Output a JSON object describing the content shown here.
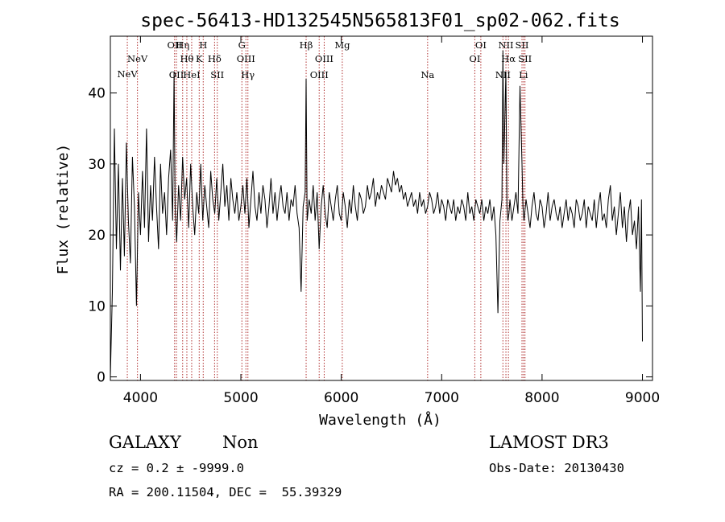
{
  "chart_data": {
    "type": "line",
    "title": "spec-56413-HD132545N565813F01_sp02-062.fits",
    "xlabel": "Wavelength (Å)",
    "ylabel": "Flux (relative)",
    "xlim": [
      3700,
      9100
    ],
    "ylim": [
      -0.5,
      48
    ],
    "xticks": [
      4000,
      5000,
      6000,
      7000,
      8000,
      9000
    ],
    "yticks": [
      0,
      10,
      20,
      30,
      40
    ],
    "line_color": "#000000",
    "marker_color": "#b03030",
    "spectral_lines": [
      {
        "label": "NeV",
        "wavelength": 3869,
        "row": 3
      },
      {
        "label": "NeV",
        "wavelength": 3970,
        "row": 2
      },
      {
        "label": "OII",
        "wavelength": 4340,
        "row": 1
      },
      {
        "label": "OII",
        "wavelength": 4358,
        "row": 4
      },
      {
        "label": "Hη",
        "wavelength": 4420,
        "row": 1
      },
      {
        "label": "Hθ",
        "wavelength": 4462,
        "row": 2
      },
      {
        "label": "HeI",
        "wavelength": 4510,
        "row": 4
      },
      {
        "label": "K",
        "wavelength": 4585,
        "row": 2
      },
      {
        "label": "H",
        "wavelength": 4625,
        "row": 1
      },
      {
        "label": "Hδ",
        "wavelength": 4738,
        "row": 2
      },
      {
        "label": "SII",
        "wavelength": 4765,
        "row": 4
      },
      {
        "label": "G",
        "wavelength": 5010,
        "row": 1
      },
      {
        "label": "OIII",
        "wavelength": 5050,
        "row": 2
      },
      {
        "label": "Hγ",
        "wavelength": 5070,
        "row": 4
      },
      {
        "label": "Hβ",
        "wavelength": 5650,
        "row": 1
      },
      {
        "label": "OIII",
        "wavelength": 5780,
        "row": 4
      },
      {
        "label": "OIII",
        "wavelength": 5830,
        "row": 2
      },
      {
        "label": "Mg",
        "wavelength": 6010,
        "row": 1
      },
      {
        "label": "Na",
        "wavelength": 6860,
        "row": 4
      },
      {
        "label": "OI",
        "wavelength": 7330,
        "row": 2
      },
      {
        "label": "OI",
        "wavelength": 7390,
        "row": 1
      },
      {
        "label": "NII",
        "wavelength": 7610,
        "row": 4
      },
      {
        "label": "NII",
        "wavelength": 7640,
        "row": 1
      },
      {
        "label": "Hα",
        "wavelength": 7665,
        "row": 2
      },
      {
        "label": "SII",
        "wavelength": 7800,
        "row": 1
      },
      {
        "label": "SII",
        "wavelength": 7830,
        "row": 2
      },
      {
        "label": "Li",
        "wavelength": 7815,
        "row": 4
      }
    ],
    "series": [
      {
        "x": [
          3700,
          3720,
          3740,
          3760,
          3780,
          3800,
          3820,
          3840,
          3860,
          3880,
          3900,
          3920,
          3940,
          3960,
          3980,
          4000,
          4020,
          4040,
          4060,
          4080,
          4100,
          4120,
          4140,
          4160,
          4180,
          4200,
          4220,
          4240,
          4260,
          4280,
          4300,
          4320,
          4335,
          4345,
          4360,
          4380,
          4400,
          4420,
          4440,
          4460,
          4480,
          4500,
          4520,
          4540,
          4560,
          4580,
          4600,
          4620,
          4640,
          4660,
          4680,
          4700,
          4720,
          4740,
          4760,
          4780,
          4800,
          4820,
          4840,
          4860,
          4880,
          4900,
          4920,
          4940,
          4960,
          4980,
          5000,
          5020,
          5040,
          5060,
          5080,
          5100,
          5120,
          5140,
          5160,
          5180,
          5200,
          5220,
          5240,
          5260,
          5280,
          5300,
          5320,
          5340,
          5360,
          5380,
          5400,
          5420,
          5440,
          5460,
          5480,
          5500,
          5520,
          5540,
          5560,
          5580,
          5600,
          5620,
          5640,
          5650,
          5660,
          5680,
          5700,
          5720,
          5740,
          5760,
          5780,
          5800,
          5820,
          5840,
          5860,
          5880,
          5900,
          5920,
          5940,
          5960,
          5980,
          6000,
          6020,
          6040,
          6060,
          6080,
          6100,
          6120,
          6140,
          6160,
          6180,
          6200,
          6220,
          6240,
          6260,
          6280,
          6300,
          6320,
          6340,
          6360,
          6380,
          6400,
          6420,
          6440,
          6460,
          6480,
          6500,
          6520,
          6540,
          6560,
          6580,
          6600,
          6620,
          6640,
          6660,
          6680,
          6700,
          6720,
          6740,
          6760,
          6780,
          6800,
          6820,
          6840,
          6860,
          6880,
          6900,
          6920,
          6940,
          6960,
          6980,
          7000,
          7020,
          7040,
          7060,
          7080,
          7100,
          7120,
          7140,
          7160,
          7180,
          7200,
          7220,
          7240,
          7260,
          7280,
          7300,
          7320,
          7340,
          7360,
          7380,
          7400,
          7420,
          7440,
          7460,
          7480,
          7500,
          7520,
          7540,
          7560,
          7580,
          7600,
          7610,
          7620,
          7640,
          7650,
          7660,
          7670,
          7680,
          7700,
          7720,
          7740,
          7760,
          7780,
          7800,
          7810,
          7820,
          7840,
          7860,
          7880,
          7900,
          7920,
          7940,
          7960,
          7980,
          8000,
          8020,
          8040,
          8060,
          8080,
          8100,
          8120,
          8140,
          8160,
          8180,
          8200,
          8220,
          8240,
          8260,
          8280,
          8300,
          8320,
          8340,
          8360,
          8380,
          8400,
          8420,
          8440,
          8460,
          8480,
          8500,
          8520,
          8540,
          8560,
          8580,
          8600,
          8620,
          8640,
          8660,
          8680,
          8700,
          8720,
          8740,
          8760,
          8780,
          8800,
          8820,
          8840,
          8860,
          8880,
          8900,
          8920,
          8940,
          8960,
          8980,
          8990,
          9000
        ],
        "y": [
          0,
          12,
          35,
          18,
          30,
          15,
          28,
          17,
          33,
          22,
          16,
          31,
          24,
          10,
          26,
          20,
          29,
          21,
          35,
          19,
          27,
          22,
          31,
          24,
          18,
          30,
          23,
          26,
          20,
          28,
          32,
          22,
          43,
          24,
          19,
          27,
          22,
          31,
          25,
          28,
          21,
          30,
          24,
          20,
          26,
          23,
          30,
          22,
          27,
          24,
          21,
          29,
          25,
          23,
          28,
          22,
          26,
          30,
          24,
          27,
          22,
          28,
          25,
          23,
          26,
          22,
          24,
          27,
          23,
          28,
          21,
          25,
          29,
          24,
          22,
          26,
          23,
          27,
          25,
          21,
          24,
          28,
          23,
          26,
          22,
          25,
          27,
          24,
          23,
          26,
          22,
          25,
          24,
          27,
          23,
          21,
          12,
          24,
          26,
          42,
          22,
          25,
          23,
          27,
          22,
          26,
          18,
          24,
          27,
          23,
          21,
          26,
          24,
          22,
          25,
          27,
          23,
          22,
          26,
          24,
          21,
          25,
          23,
          27,
          24,
          22,
          26,
          25,
          23,
          24,
          27,
          25,
          26,
          28,
          24,
          26,
          25,
          27,
          26,
          25,
          28,
          27,
          26,
          29,
          27,
          28,
          26,
          27,
          25,
          26,
          24,
          25,
          26,
          24,
          25,
          23,
          26,
          24,
          25,
          23,
          24,
          26,
          25,
          23,
          24,
          26,
          23,
          25,
          24,
          22,
          25,
          24,
          23,
          25,
          22,
          24,
          23,
          25,
          24,
          22,
          26,
          23,
          24,
          22,
          25,
          24,
          23,
          25,
          22,
          24,
          23,
          25,
          22,
          24,
          20,
          9,
          22,
          25,
          46,
          30,
          43,
          24,
          22,
          23,
          25,
          22,
          24,
          26,
          23,
          41,
          30,
          24,
          22,
          25,
          23,
          21,
          24,
          26,
          23,
          22,
          25,
          24,
          21,
          23,
          26,
          22,
          24,
          25,
          23,
          22,
          24,
          21,
          23,
          25,
          22,
          24,
          23,
          21,
          25,
          24,
          22,
          23,
          25,
          21,
          24,
          23,
          22,
          25,
          21,
          24,
          26,
          22,
          23,
          21,
          25,
          27,
          22,
          24,
          20,
          23,
          26,
          21,
          24,
          19,
          23,
          25,
          20,
          22,
          18,
          24,
          12,
          25,
          5
        ]
      }
    ]
  },
  "info": {
    "class": "GALAXY",
    "subclass": "Non",
    "survey": "LAMOST DR3",
    "cz": "cz = 0.2 ± -9999.0",
    "obs_date": "Obs-Date: 20130430",
    "radec": "RA = 200.11504, DEC =  55.39329"
  }
}
